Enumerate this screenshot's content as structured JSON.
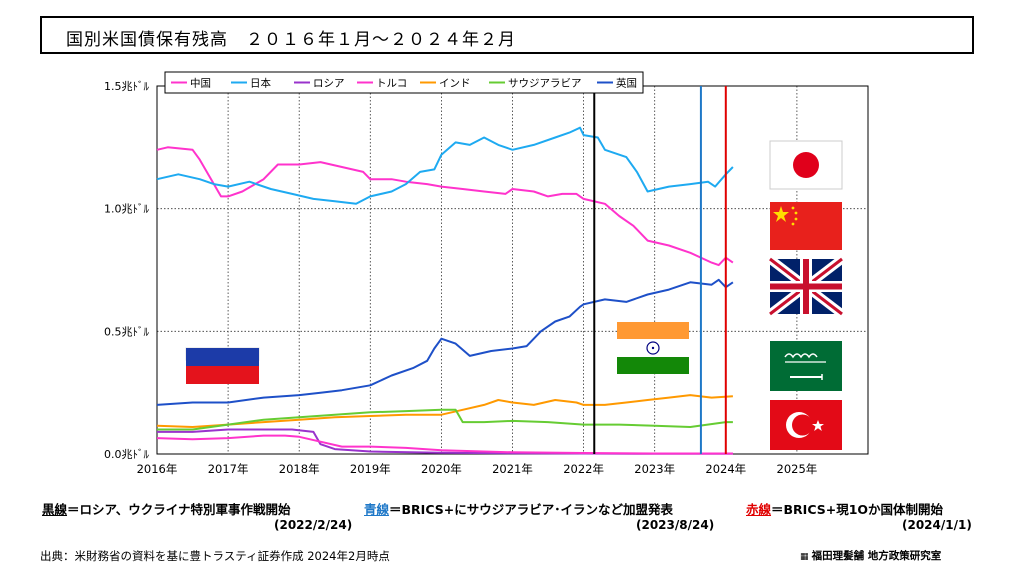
{
  "header": {
    "title": "国別米国債保有残高　２０１６年１月～２０２４年２月"
  },
  "chart_data": {
    "type": "line",
    "title": "国別米国債保有残高　２０１６年１月～２０２４年２月",
    "xlabel": "",
    "ylabel": "",
    "x_tick_labels": [
      "2016年",
      "2017年",
      "2018年",
      "2019年",
      "2020年",
      "2021年",
      "2022年",
      "2023年",
      "2024年",
      "2025年"
    ],
    "y_tick_labels": [
      "0.0兆ﾄﾞﾙ",
      "0.5兆ﾄﾞﾙ",
      "1.0兆ﾄﾞﾙ",
      "1.5兆ﾄﾞﾙ"
    ],
    "y_ticks": [
      0,
      0.5,
      1.0,
      1.5
    ],
    "xlim": [
      2016,
      2026
    ],
    "ylim": [
      0,
      1.5
    ],
    "grid": true,
    "legend_position": "top-left",
    "series": [
      {
        "name": "中国",
        "color": "#ff33cc",
        "points": [
          [
            2016.0,
            1.24
          ],
          [
            2016.15,
            1.25
          ],
          [
            2016.5,
            1.24
          ],
          [
            2016.6,
            1.2
          ],
          [
            2016.7,
            1.15
          ],
          [
            2016.8,
            1.1
          ],
          [
            2016.9,
            1.05
          ],
          [
            2017.0,
            1.05
          ],
          [
            2017.2,
            1.07
          ],
          [
            2017.5,
            1.12
          ],
          [
            2017.7,
            1.18
          ],
          [
            2018.0,
            1.18
          ],
          [
            2018.3,
            1.19
          ],
          [
            2018.6,
            1.17
          ],
          [
            2018.9,
            1.15
          ],
          [
            2019.0,
            1.12
          ],
          [
            2019.3,
            1.12
          ],
          [
            2019.5,
            1.11
          ],
          [
            2019.8,
            1.1
          ],
          [
            2020.0,
            1.09
          ],
          [
            2020.3,
            1.08
          ],
          [
            2020.6,
            1.07
          ],
          [
            2020.9,
            1.06
          ],
          [
            2021.0,
            1.08
          ],
          [
            2021.3,
            1.07
          ],
          [
            2021.5,
            1.05
          ],
          [
            2021.7,
            1.06
          ],
          [
            2021.9,
            1.06
          ],
          [
            2022.0,
            1.04
          ],
          [
            2022.3,
            1.02
          ],
          [
            2022.5,
            0.97
          ],
          [
            2022.7,
            0.93
          ],
          [
            2022.9,
            0.87
          ],
          [
            2023.2,
            0.85
          ],
          [
            2023.5,
            0.82
          ],
          [
            2023.8,
            0.78
          ],
          [
            2023.9,
            0.77
          ],
          [
            2024.0,
            0.8
          ],
          [
            2024.1,
            0.78
          ]
        ]
      },
      {
        "name": "日本",
        "color": "#1eaaf1",
        "points": [
          [
            2016.0,
            1.12
          ],
          [
            2016.3,
            1.14
          ],
          [
            2016.6,
            1.12
          ],
          [
            2016.8,
            1.1
          ],
          [
            2017.0,
            1.09
          ],
          [
            2017.3,
            1.11
          ],
          [
            2017.6,
            1.08
          ],
          [
            2017.9,
            1.06
          ],
          [
            2018.2,
            1.04
          ],
          [
            2018.5,
            1.03
          ],
          [
            2018.8,
            1.02
          ],
          [
            2019.0,
            1.05
          ],
          [
            2019.3,
            1.07
          ],
          [
            2019.5,
            1.1
          ],
          [
            2019.7,
            1.15
          ],
          [
            2019.9,
            1.16
          ],
          [
            2020.0,
            1.22
          ],
          [
            2020.2,
            1.27
          ],
          [
            2020.4,
            1.26
          ],
          [
            2020.6,
            1.29
          ],
          [
            2020.8,
            1.26
          ],
          [
            2021.0,
            1.24
          ],
          [
            2021.3,
            1.26
          ],
          [
            2021.6,
            1.29
          ],
          [
            2021.8,
            1.31
          ],
          [
            2021.95,
            1.33
          ],
          [
            2022.0,
            1.3
          ],
          [
            2022.2,
            1.29
          ],
          [
            2022.3,
            1.24
          ],
          [
            2022.6,
            1.21
          ],
          [
            2022.75,
            1.15
          ],
          [
            2022.9,
            1.07
          ],
          [
            2023.2,
            1.09
          ],
          [
            2023.5,
            1.1
          ],
          [
            2023.75,
            1.11
          ],
          [
            2023.85,
            1.09
          ],
          [
            2024.0,
            1.14
          ],
          [
            2024.1,
            1.17
          ]
        ]
      },
      {
        "name": "ロシア",
        "color": "#9933cc",
        "points": [
          [
            2016.0,
            0.09
          ],
          [
            2016.5,
            0.09
          ],
          [
            2017.0,
            0.1
          ],
          [
            2017.5,
            0.1
          ],
          [
            2017.9,
            0.1
          ],
          [
            2018.2,
            0.09
          ],
          [
            2018.3,
            0.04
          ],
          [
            2018.5,
            0.02
          ],
          [
            2019.0,
            0.01
          ],
          [
            2020.0,
            0.005
          ],
          [
            2021.0,
            0.003
          ],
          [
            2022.0,
            0.002
          ],
          [
            2023.0,
            0.001
          ],
          [
            2024.1,
            0.001
          ]
        ]
      },
      {
        "name": "トルコ",
        "color": "#ff33cc",
        "points": [
          [
            2016.0,
            0.065
          ],
          [
            2016.5,
            0.06
          ],
          [
            2017.0,
            0.065
          ],
          [
            2017.5,
            0.075
          ],
          [
            2017.8,
            0.075
          ],
          [
            2018.0,
            0.07
          ],
          [
            2018.3,
            0.05
          ],
          [
            2018.6,
            0.03
          ],
          [
            2019.0,
            0.03
          ],
          [
            2019.5,
            0.025
          ],
          [
            2020.0,
            0.015
          ],
          [
            2021.0,
            0.007
          ],
          [
            2022.0,
            0.004
          ],
          [
            2023.0,
            0.002
          ],
          [
            2024.1,
            0.002
          ]
        ]
      },
      {
        "name": "インド",
        "color": "#ff9900",
        "points": [
          [
            2016.0,
            0.115
          ],
          [
            2016.5,
            0.11
          ],
          [
            2017.0,
            0.12
          ],
          [
            2017.5,
            0.13
          ],
          [
            2018.0,
            0.14
          ],
          [
            2018.5,
            0.15
          ],
          [
            2019.0,
            0.155
          ],
          [
            2019.5,
            0.16
          ],
          [
            2020.0,
            0.16
          ],
          [
            2020.3,
            0.18
          ],
          [
            2020.6,
            0.2
          ],
          [
            2020.8,
            0.22
          ],
          [
            2021.0,
            0.21
          ],
          [
            2021.3,
            0.2
          ],
          [
            2021.6,
            0.22
          ],
          [
            2021.9,
            0.21
          ],
          [
            2022.0,
            0.2
          ],
          [
            2022.3,
            0.2
          ],
          [
            2022.6,
            0.21
          ],
          [
            2022.9,
            0.22
          ],
          [
            2023.2,
            0.23
          ],
          [
            2023.5,
            0.24
          ],
          [
            2023.8,
            0.23
          ],
          [
            2024.1,
            0.235
          ]
        ]
      },
      {
        "name": "サウジアラビア",
        "color": "#66cc33",
        "points": [
          [
            2016.0,
            0.1
          ],
          [
            2016.5,
            0.1
          ],
          [
            2017.0,
            0.12
          ],
          [
            2017.5,
            0.14
          ],
          [
            2018.0,
            0.15
          ],
          [
            2018.5,
            0.16
          ],
          [
            2019.0,
            0.17
          ],
          [
            2019.5,
            0.175
          ],
          [
            2020.0,
            0.18
          ],
          [
            2020.2,
            0.18
          ],
          [
            2020.3,
            0.13
          ],
          [
            2020.6,
            0.13
          ],
          [
            2021.0,
            0.135
          ],
          [
            2021.5,
            0.13
          ],
          [
            2022.0,
            0.12
          ],
          [
            2022.5,
            0.12
          ],
          [
            2023.0,
            0.115
          ],
          [
            2023.5,
            0.11
          ],
          [
            2024.0,
            0.13
          ],
          [
            2024.1,
            0.13
          ]
        ]
      },
      {
        "name": "英国",
        "color": "#1e50c8",
        "points": [
          [
            2016.0,
            0.2
          ],
          [
            2016.5,
            0.21
          ],
          [
            2017.0,
            0.21
          ],
          [
            2017.5,
            0.23
          ],
          [
            2018.0,
            0.24
          ],
          [
            2018.3,
            0.25
          ],
          [
            2018.6,
            0.26
          ],
          [
            2019.0,
            0.28
          ],
          [
            2019.3,
            0.32
          ],
          [
            2019.6,
            0.35
          ],
          [
            2019.8,
            0.38
          ],
          [
            2019.9,
            0.43
          ],
          [
            2020.0,
            0.47
          ],
          [
            2020.2,
            0.45
          ],
          [
            2020.4,
            0.4
          ],
          [
            2020.7,
            0.42
          ],
          [
            2021.0,
            0.43
          ],
          [
            2021.2,
            0.44
          ],
          [
            2021.4,
            0.5
          ],
          [
            2021.6,
            0.54
          ],
          [
            2021.8,
            0.56
          ],
          [
            2021.95,
            0.6
          ],
          [
            2022.0,
            0.61
          ],
          [
            2022.3,
            0.63
          ],
          [
            2022.6,
            0.62
          ],
          [
            2022.9,
            0.65
          ],
          [
            2023.2,
            0.67
          ],
          [
            2023.5,
            0.7
          ],
          [
            2023.8,
            0.69
          ],
          [
            2023.9,
            0.71
          ],
          [
            2024.0,
            0.68
          ],
          [
            2024.1,
            0.7
          ]
        ]
      }
    ],
    "vertical_lines": [
      {
        "x": 2022.15,
        "color": "#000000",
        "label": "黒線"
      },
      {
        "x": 2023.65,
        "color": "#1e78c8",
        "label": "青線"
      },
      {
        "x": 2024.0,
        "color": "#e00000",
        "label": "赤線"
      }
    ]
  },
  "notes": {
    "black": {
      "key": "黒線",
      "text": "＝ロシア、ウクライナ特別軍事作戦開始",
      "date": "(2022/2/24)",
      "key_color": "#000000"
    },
    "blue": {
      "key": "青線",
      "text": "＝BRICS+にサウジアラビア･イランなど加盟発表",
      "date": "(2023/8/24)",
      "key_color": "#1e78c8"
    },
    "red": {
      "key": "赤線",
      "text": "＝BRICS+現1Oか国体制開始",
      "date": "(2024/1/1)",
      "key_color": "#e00000"
    }
  },
  "footer": {
    "source": "出典：米財務省の資料を基に豊トラスティ証券作成 2024年2月時点",
    "credit": "福田理髪舗 地方政策研究室"
  },
  "flags": [
    {
      "name": "japan-flag",
      "country": "日本"
    },
    {
      "name": "china-flag",
      "country": "中国"
    },
    {
      "name": "uk-flag",
      "country": "英国"
    },
    {
      "name": "saudi-flag",
      "country": "サウジアラビア"
    },
    {
      "name": "turkey-flag",
      "country": "トルコ"
    },
    {
      "name": "india-flag",
      "country": "インド"
    },
    {
      "name": "russia-flag",
      "country": "ロシア"
    }
  ]
}
